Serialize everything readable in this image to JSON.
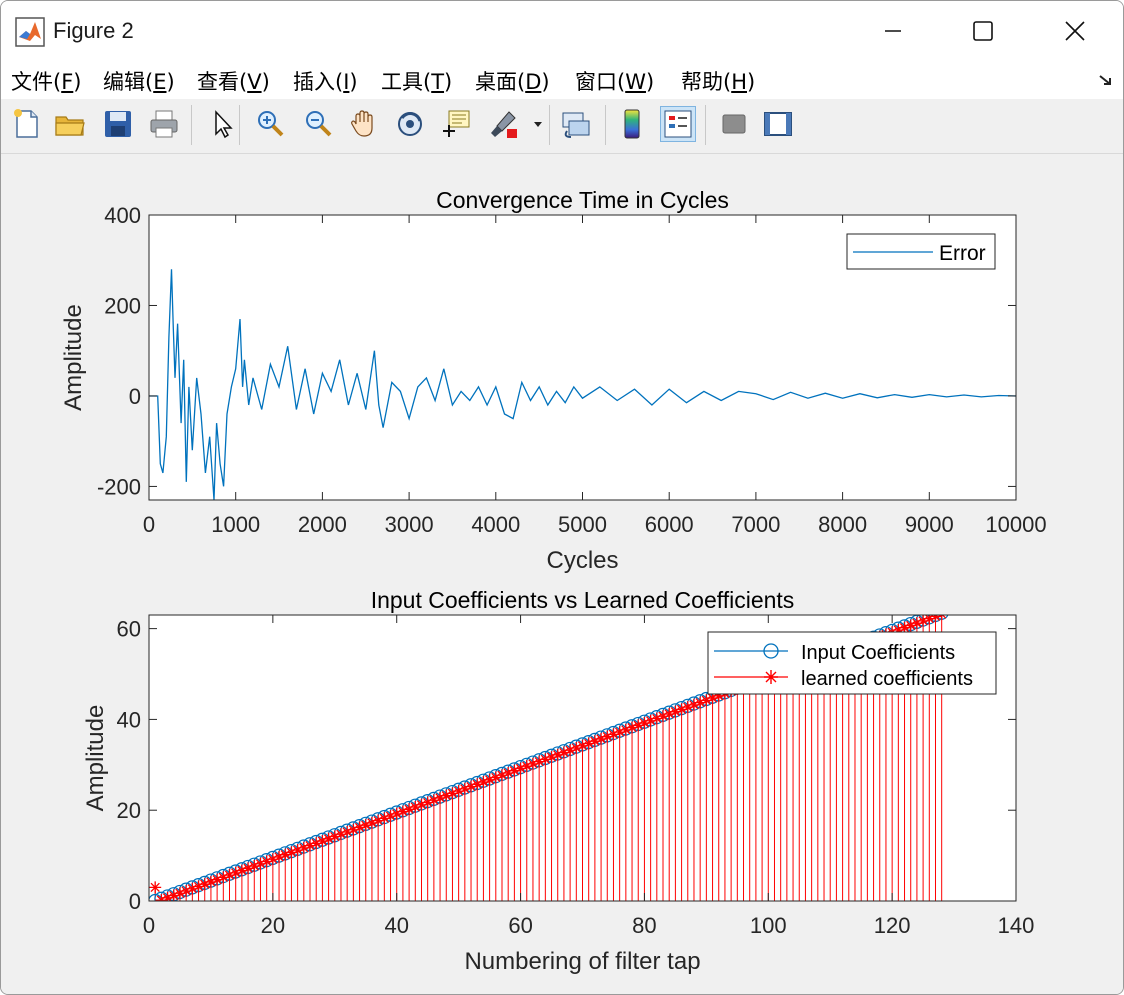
{
  "window": {
    "title": "Figure 2"
  },
  "menu": [
    {
      "label": "文件(",
      "mnemonic": "F",
      "suffix": ")"
    },
    {
      "label": "编辑(",
      "mnemonic": "E",
      "suffix": ")"
    },
    {
      "label": "查看(",
      "mnemonic": "V",
      "suffix": ")"
    },
    {
      "label": "插入(",
      "mnemonic": "I",
      "suffix": ")"
    },
    {
      "label": "工具(",
      "mnemonic": "T",
      "suffix": ")"
    },
    {
      "label": "桌面(",
      "mnemonic": "D",
      "suffix": ")"
    },
    {
      "label": "窗口(",
      "mnemonic": "W",
      "suffix": ")"
    },
    {
      "label": "帮助(",
      "mnemonic": "H",
      "suffix": ")"
    }
  ],
  "toolbar": [
    "new-figure-icon",
    "open-file-icon",
    "save-icon",
    "print-icon",
    "select-arrow-icon",
    "zoom-in-icon",
    "zoom-out-icon",
    "pan-hand-icon",
    "rotate-3d-icon",
    "data-cursor-icon",
    "brush-icon",
    "link-plot-icon",
    "colorbar-icon",
    "legend-icon",
    "hide-plot-tools-icon",
    "show-plot-tools-icon"
  ],
  "colors": {
    "blue": "#0072bd",
    "red": "#ff0000"
  },
  "chart_data": [
    {
      "type": "line",
      "title": "Convergence Time in Cycles",
      "xlabel": "Cycles",
      "ylabel": "Amplitude",
      "xlim": [
        0,
        10000
      ],
      "ylim": [
        -230,
        400
      ],
      "xticks": [
        0,
        1000,
        2000,
        3000,
        4000,
        5000,
        6000,
        7000,
        8000,
        9000,
        10000
      ],
      "yticks": [
        -200,
        0,
        200,
        400
      ],
      "legend": "top-right",
      "series": [
        {
          "name": "Error",
          "color": "#0072bd",
          "x": [
            0,
            100,
            130,
            160,
            200,
            230,
            260,
            280,
            300,
            330,
            370,
            400,
            430,
            460,
            500,
            550,
            600,
            650,
            700,
            750,
            780,
            820,
            860,
            900,
            950,
            1000,
            1050,
            1080,
            1100,
            1150,
            1200,
            1300,
            1400,
            1500,
            1600,
            1700,
            1800,
            1900,
            2000,
            2100,
            2200,
            2300,
            2400,
            2500,
            2600,
            2650,
            2700,
            2800,
            2900,
            3000,
            3100,
            3200,
            3300,
            3400,
            3500,
            3600,
            3700,
            3800,
            3900,
            4000,
            4100,
            4200,
            4300,
            4400,
            4500,
            4600,
            4700,
            4800,
            4900,
            5000,
            5200,
            5400,
            5600,
            5800,
            6000,
            6200,
            6400,
            6600,
            6800,
            7000,
            7200,
            7400,
            7600,
            7800,
            8000,
            8200,
            8400,
            8600,
            8800,
            9000,
            9200,
            9400,
            9600,
            9800,
            10000
          ],
          "y": [
            0,
            0,
            -150,
            -170,
            -90,
            130,
            280,
            150,
            40,
            160,
            -60,
            80,
            -190,
            20,
            -120,
            40,
            -40,
            -170,
            -90,
            -230,
            -60,
            -150,
            -200,
            -40,
            20,
            60,
            170,
            20,
            80,
            -20,
            40,
            -30,
            70,
            20,
            110,
            -30,
            60,
            -40,
            50,
            10,
            80,
            -20,
            50,
            -30,
            100,
            -20,
            -70,
            30,
            10,
            -50,
            20,
            40,
            -10,
            60,
            -20,
            10,
            -10,
            20,
            -20,
            20,
            -40,
            -50,
            30,
            -10,
            20,
            -20,
            10,
            -15,
            20,
            -5,
            20,
            -10,
            15,
            -20,
            15,
            -15,
            10,
            -10,
            10,
            5,
            -8,
            8,
            -5,
            6,
            -5,
            5,
            -4,
            3,
            -3,
            3,
            -2,
            2,
            -2,
            1,
            0
          ]
        }
      ]
    },
    {
      "type": "stem",
      "title": "Input Coefficients vs Learned Coefficients",
      "xlabel": "Numbering of filter tap",
      "ylabel": "Amplitude",
      "xlim": [
        0,
        140
      ],
      "ylim": [
        0,
        63
      ],
      "xticks": [
        0,
        20,
        40,
        60,
        80,
        100,
        120,
        140
      ],
      "yticks": [
        0,
        20,
        40,
        60
      ],
      "legend": "top-right",
      "series": [
        {
          "name": "Input Coefficients",
          "color": "#0072bd",
          "marker": "o",
          "x_start": 1,
          "x_end": 128,
          "slope": 0.5,
          "offset": -0.5
        },
        {
          "name": "learned coefficients",
          "color": "#ff0000",
          "marker": "*",
          "x_start": 1,
          "x_end": 128,
          "slope": 0.5,
          "offset": -0.8,
          "first_value": 3
        }
      ]
    }
  ]
}
